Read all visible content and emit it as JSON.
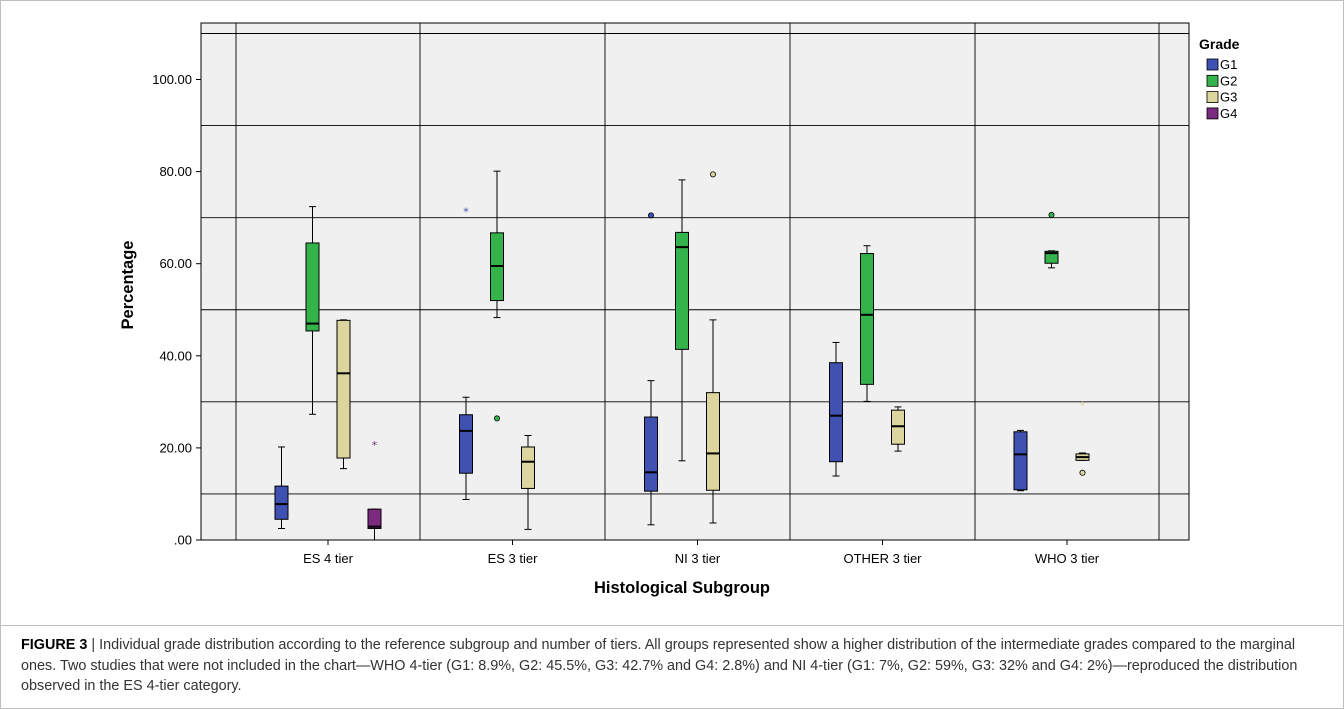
{
  "chart_data": {
    "type": "boxplot",
    "xlabel": "Histological Subgroup",
    "ylabel": "Percentage",
    "ylim": [
      0,
      110
    ],
    "grid": true,
    "y_ticks": [
      ".00",
      "20.00",
      "40.00",
      "60.00",
      "80.00",
      "100.00"
    ],
    "categories": [
      "ES 4 tier",
      "ES 3 tier",
      "NI 3 tier",
      "OTHER 3 tier",
      "WHO 3 tier"
    ],
    "legend": {
      "title": "Grade",
      "placement": "top-right",
      "items": [
        {
          "label": "G1",
          "color": "#3f51b1"
        },
        {
          "label": "G2",
          "color": "#34b34a"
        },
        {
          "label": "G3",
          "color": "#dcd59e"
        },
        {
          "label": "G4",
          "color": "#7b2a7f"
        }
      ]
    },
    "series": [
      {
        "name": "G1",
        "color": "#3f51b1",
        "boxes": [
          {
            "category": "ES 4 tier",
            "min": 2.5,
            "q1": 4.5,
            "median": 7.8,
            "q3": 11.7,
            "max": 20.2,
            "outliers": []
          },
          {
            "category": "ES 3 tier",
            "min": 8.8,
            "q1": 14.5,
            "median": 23.7,
            "q3": 27.2,
            "max": 31.0,
            "outliers": [
              {
                "value": 71.3,
                "marker": "star"
              }
            ]
          },
          {
            "category": "NI 3 tier",
            "min": 3.3,
            "q1": 10.6,
            "median": 14.7,
            "q3": 26.7,
            "max": 34.6,
            "outliers": [
              {
                "value": 70.5,
                "marker": "circle"
              }
            ]
          },
          {
            "category": "OTHER 3 tier",
            "min": 13.9,
            "q1": 17.0,
            "median": 27.0,
            "q3": 38.5,
            "max": 42.9,
            "outliers": []
          },
          {
            "category": "WHO 3 tier",
            "min": 10.7,
            "q1": 10.9,
            "median": 18.6,
            "q3": 23.5,
            "max": 23.8,
            "outliers": []
          }
        ]
      },
      {
        "name": "G2",
        "color": "#34b34a",
        "boxes": [
          {
            "category": "ES 4 tier",
            "min": 27.3,
            "q1": 45.4,
            "median": 47.0,
            "q3": 64.5,
            "max": 72.4,
            "outliers": []
          },
          {
            "category": "ES 3 tier",
            "min": 48.3,
            "q1": 52.0,
            "median": 59.5,
            "q3": 66.7,
            "max": 80.1,
            "outliers": [
              {
                "value": 26.4,
                "marker": "circle"
              }
            ]
          },
          {
            "category": "NI 3 tier",
            "min": 17.2,
            "q1": 41.4,
            "median": 63.6,
            "q3": 66.8,
            "max": 78.2,
            "outliers": []
          },
          {
            "category": "OTHER 3 tier",
            "min": 30.1,
            "q1": 33.8,
            "median": 48.9,
            "q3": 62.2,
            "max": 63.9,
            "outliers": []
          },
          {
            "category": "WHO 3 tier",
            "min": 59.1,
            "q1": 60.1,
            "median": 62.3,
            "q3": 62.7,
            "max": 62.8,
            "outliers": [
              {
                "value": 70.6,
                "marker": "circle"
              }
            ]
          }
        ]
      },
      {
        "name": "G3",
        "color": "#dcd59e",
        "boxes": [
          {
            "category": "ES 4 tier",
            "min": 15.5,
            "q1": 17.8,
            "median": 36.2,
            "q3": 47.7,
            "max": 47.8,
            "outliers": []
          },
          {
            "category": "ES 3 tier",
            "min": 2.3,
            "q1": 11.2,
            "median": 17.0,
            "q3": 20.2,
            "max": 22.7,
            "outliers": []
          },
          {
            "category": "NI 3 tier",
            "min": 3.7,
            "q1": 10.8,
            "median": 18.8,
            "q3": 32.0,
            "max": 47.8,
            "outliers": [
              {
                "value": 79.4,
                "marker": "circle"
              }
            ]
          },
          {
            "category": "OTHER 3 tier",
            "min": 19.3,
            "q1": 20.8,
            "median": 24.7,
            "q3": 28.2,
            "max": 28.9,
            "outliers": []
          },
          {
            "category": "WHO 3 tier",
            "min": 17.3,
            "q1": 17.3,
            "median": 18.0,
            "q3": 18.7,
            "max": 18.9,
            "outliers": [
              {
                "value": 14.6,
                "marker": "circle"
              },
              {
                "value": 29.2,
                "marker": "star"
              }
            ]
          }
        ]
      },
      {
        "name": "G4",
        "color": "#7b2a7f",
        "boxes": [
          {
            "category": "ES 4 tier",
            "min": 0.0,
            "q1": 2.5,
            "median": 2.9,
            "q3": 6.7,
            "max": 6.7,
            "outliers": [
              {
                "value": 20.6,
                "marker": "star"
              }
            ]
          }
        ]
      }
    ]
  },
  "caption": {
    "label": "FIGURE 3",
    "separator": " | ",
    "text": "Individual grade distribution according to the reference subgroup and number of tiers. All groups represented show a higher distribution of the intermediate grades compared to the marginal ones. Two studies that were not included in the chart—WHO 4-tier (G1: 8.9%, G2: 45.5%, G3: 42.7% and G4: 2.8%) and NI 4-tier (G1: 7%, G2: 59%, G3: 32% and G4: 2%)—reproduced the distribution observed in the ES 4-tier category."
  }
}
